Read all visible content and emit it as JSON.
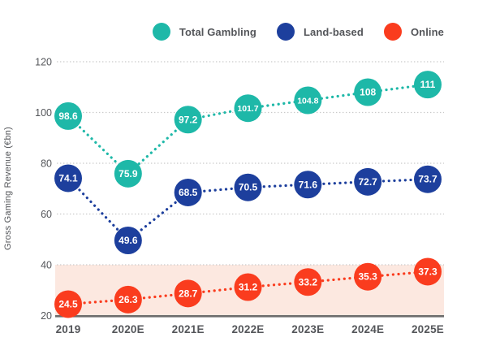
{
  "chart_data": {
    "type": "line",
    "title": "",
    "xlabel": "",
    "ylabel": "Gross Gaming Revenue (€bn)",
    "categories": [
      "2019",
      "2020E",
      "2021E",
      "2022E",
      "2023E",
      "2024E",
      "2025E"
    ],
    "series": [
      {
        "name": "Total Gambling",
        "color": "#1eb8a8",
        "values": [
          98.6,
          75.9,
          97.2,
          101.7,
          104.8,
          108,
          111
        ],
        "labels": [
          "98.6",
          "75.9",
          "97.2",
          "101.7",
          "104.8",
          "108",
          "111"
        ]
      },
      {
        "name": "Land-based",
        "color": "#1d3f9d",
        "values": [
          74.1,
          49.6,
          68.5,
          70.5,
          71.6,
          72.7,
          73.7
        ],
        "labels": [
          "74.1",
          "49.6",
          "68.5",
          "70.5",
          "71.6",
          "72.7",
          "73.7"
        ]
      },
      {
        "name": "Online",
        "color": "#fa3c1e",
        "values": [
          24.5,
          26.3,
          28.7,
          31.2,
          33.2,
          35.3,
          37.3
        ],
        "labels": [
          "24.5",
          "26.3",
          "28.7",
          "31.2",
          "33.2",
          "35.3",
          "37.3"
        ]
      }
    ],
    "ylim": [
      20,
      120
    ],
    "yticks": [
      20,
      40,
      60,
      80,
      100,
      120
    ],
    "grid": "dotted horizontal gridlines",
    "line_style": "dotted",
    "marker": "filled circle with white value label",
    "legend_position": "top-right",
    "highlight_band": {
      "from": 20,
      "to": 40,
      "color": "#fce8e0"
    },
    "colors": {
      "axis_line": "#6d6d6d",
      "gridline": "#c9c9c9",
      "tick_text": "#54565a",
      "point_label_text": "#ffffff"
    }
  }
}
